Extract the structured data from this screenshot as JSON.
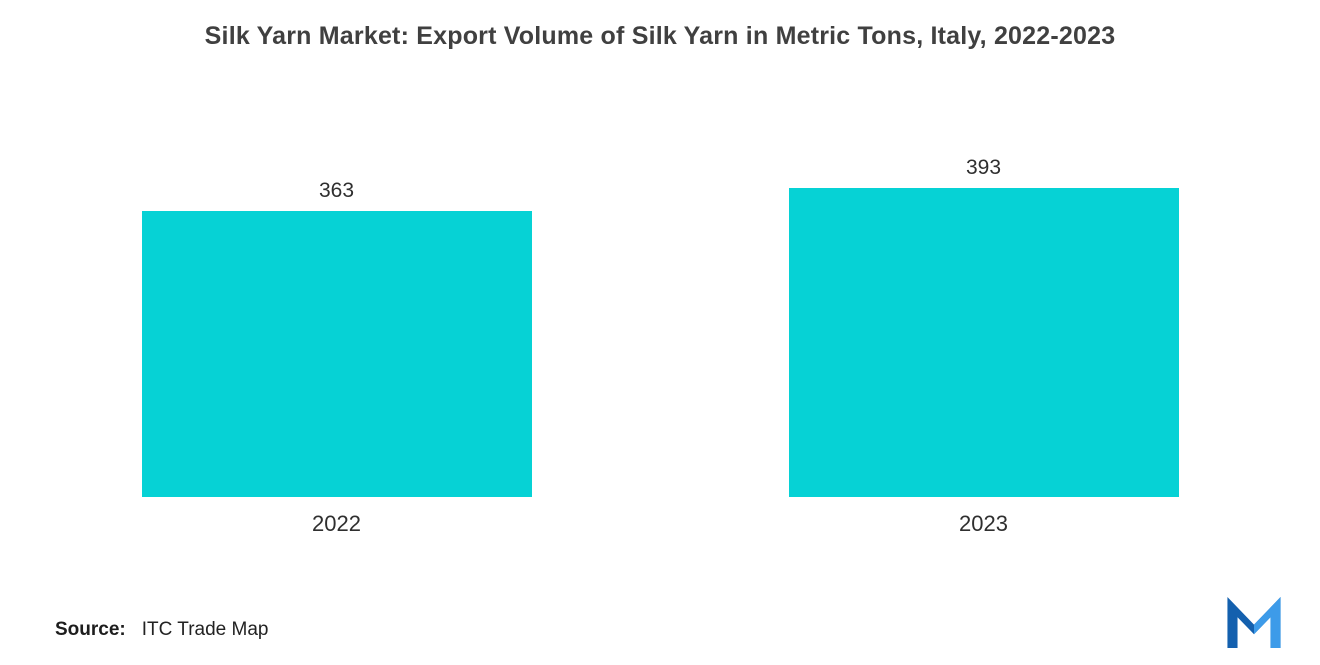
{
  "header": {
    "title": "Silk Yarn Market: Export Volume of Silk Yarn in Metric Tons, Italy, 2022-2023"
  },
  "chart_data": {
    "type": "bar",
    "title": "Silk Yarn Market: Export Volume of Silk Yarn in Metric Tons, Italy, 2022-2023",
    "categories": [
      "2022",
      "2023"
    ],
    "values": [
      363,
      393
    ],
    "xlabel": "",
    "ylabel": "",
    "ylim": [
      0,
      400
    ],
    "grid": false,
    "legend": false,
    "bar_color": "#06d2d5",
    "data_label_color": "#2f2f2f",
    "axis_label_color": "#2f2f2f"
  },
  "footer": {
    "source_label": "Source:",
    "source_value": "ITC Trade Map",
    "logo": "mordor-intelligence-logo"
  }
}
